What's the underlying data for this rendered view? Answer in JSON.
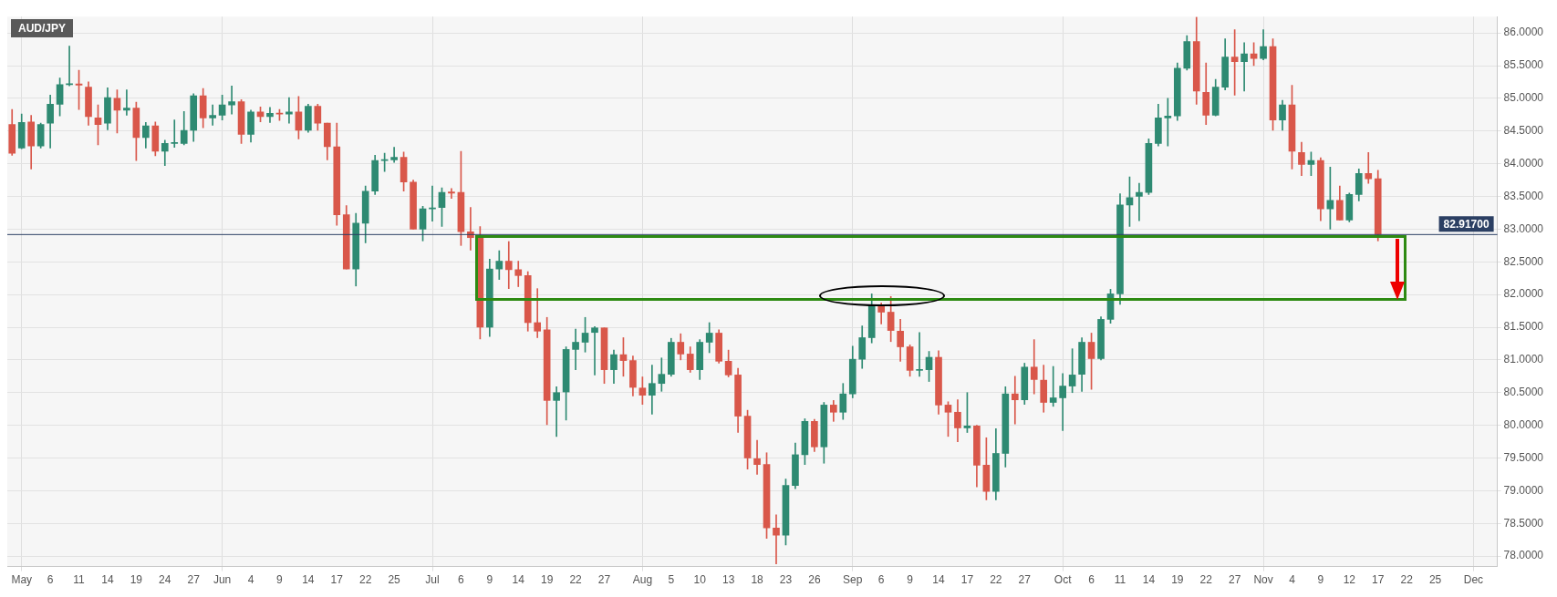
{
  "chart_data": {
    "type": "candlestick",
    "title": "AUD/JPY",
    "categories": [
      null,
      "May",
      null,
      null,
      "6",
      null,
      null,
      "11",
      null,
      null,
      "14",
      null,
      null,
      "19",
      null,
      null,
      "24",
      null,
      null,
      "27",
      null,
      null,
      "Jun",
      null,
      null,
      "4",
      null,
      null,
      "9",
      null,
      null,
      "14",
      null,
      null,
      "17",
      null,
      null,
      "22",
      null,
      null,
      "25",
      null,
      null,
      null,
      "Jul",
      null,
      null,
      "6",
      null,
      null,
      "9",
      null,
      null,
      "14",
      null,
      null,
      "19",
      null,
      null,
      "22",
      null,
      null,
      "27",
      null,
      null,
      null,
      "Aug",
      null,
      null,
      "5",
      null,
      null,
      "10",
      null,
      null,
      "13",
      null,
      null,
      "18",
      null,
      null,
      "23",
      null,
      null,
      "26",
      null,
      null,
      null,
      "Sep",
      null,
      null,
      "6",
      null,
      null,
      "9",
      null,
      null,
      "14",
      null,
      null,
      "17",
      null,
      null,
      "22",
      null,
      null,
      "27",
      null,
      null,
      null,
      "Oct",
      null,
      null,
      "6",
      null,
      null,
      "11",
      null,
      null,
      "14",
      null,
      null,
      "19",
      null,
      null,
      "22",
      null,
      null,
      "27",
      null,
      null,
      "Nov",
      null,
      null,
      "4",
      null,
      null,
      "9",
      null,
      null,
      "12",
      null,
      null,
      "17",
      null,
      null,
      "22",
      null,
      null,
      "25",
      null,
      null,
      null,
      "Dec",
      null,
      null
    ],
    "ohlc": [
      [
        84.6,
        84.83,
        84.13,
        84.16
      ],
      [
        84.24,
        84.76,
        84.23,
        84.63
      ],
      [
        84.64,
        84.74,
        83.92,
        84.27
      ],
      [
        84.27,
        84.62,
        84.24,
        84.6
      ],
      [
        84.62,
        85.05,
        84.24,
        84.91
      ],
      [
        84.91,
        85.31,
        84.73,
        85.21
      ],
      [
        85.21,
        85.8,
        85.19,
        85.22
      ],
      [
        85.22,
        85.43,
        84.83,
        85.2
      ],
      [
        85.17,
        85.25,
        84.59,
        84.72
      ],
      [
        84.7,
        84.9,
        84.29,
        84.6
      ],
      [
        84.62,
        85.16,
        84.52,
        85.01
      ],
      [
        85.0,
        85.13,
        84.47,
        84.82
      ],
      [
        84.82,
        85.13,
        84.74,
        84.85
      ],
      [
        84.85,
        84.94,
        84.05,
        84.4
      ],
      [
        84.4,
        84.63,
        84.24,
        84.58
      ],
      [
        84.58,
        84.64,
        84.12,
        84.19
      ],
      [
        84.19,
        84.36,
        83.97,
        84.31
      ],
      [
        84.31,
        84.67,
        84.25,
        84.32
      ],
      [
        84.31,
        84.8,
        84.29,
        84.51
      ],
      [
        84.51,
        85.07,
        84.34,
        85.04
      ],
      [
        85.04,
        85.15,
        84.55,
        84.7
      ],
      [
        84.7,
        84.9,
        84.59,
        84.74
      ],
      [
        84.74,
        85.05,
        84.67,
        84.9
      ],
      [
        84.9,
        85.19,
        84.76,
        84.95
      ],
      [
        84.95,
        84.98,
        84.31,
        84.45
      ],
      [
        84.45,
        84.82,
        84.33,
        84.79
      ],
      [
        84.79,
        84.87,
        84.64,
        84.72
      ],
      [
        84.72,
        84.86,
        84.63,
        84.77
      ],
      [
        84.77,
        84.83,
        84.66,
        84.76
      ],
      [
        84.76,
        85.01,
        84.62,
        84.79
      ],
      [
        84.79,
        85.03,
        84.38,
        84.51
      ],
      [
        84.51,
        84.91,
        84.48,
        84.88
      ],
      [
        84.88,
        84.91,
        84.51,
        84.62
      ],
      [
        84.62,
        84.62,
        84.06,
        84.26
      ],
      [
        84.26,
        84.62,
        83.06,
        83.22
      ],
      [
        83.22,
        83.36,
        82.39,
        82.39
      ],
      [
        82.39,
        83.24,
        82.13,
        83.09
      ],
      [
        83.09,
        83.66,
        82.79,
        83.58
      ],
      [
        83.58,
        84.13,
        83.53,
        84.05
      ],
      [
        84.05,
        84.16,
        83.88,
        84.06
      ],
      [
        84.06,
        84.25,
        84.02,
        84.1
      ],
      [
        84.1,
        84.18,
        83.58,
        83.72
      ],
      [
        83.72,
        83.75,
        83.0,
        83.0
      ],
      [
        83.0,
        83.35,
        82.82,
        83.31
      ],
      [
        83.31,
        83.66,
        83.12,
        83.32
      ],
      [
        83.33,
        83.63,
        83.04,
        83.56
      ],
      [
        83.57,
        83.62,
        83.47,
        83.55
      ],
      [
        83.56,
        84.19,
        82.75,
        82.96
      ],
      [
        82.96,
        83.33,
        82.68,
        82.87
      ],
      [
        82.87,
        83.04,
        81.32,
        81.5
      ],
      [
        81.5,
        82.54,
        81.36,
        82.39
      ],
      [
        82.39,
        82.67,
        82.23,
        82.51
      ],
      [
        82.51,
        82.81,
        82.09,
        82.38
      ],
      [
        82.38,
        82.51,
        82.12,
        82.29
      ],
      [
        82.29,
        82.35,
        81.44,
        81.57
      ],
      [
        81.57,
        82.09,
        81.34,
        81.44
      ],
      [
        81.46,
        81.65,
        80.01,
        80.38
      ],
      [
        80.38,
        80.59,
        79.83,
        80.5
      ],
      [
        80.51,
        81.2,
        80.08,
        81.16
      ],
      [
        81.16,
        81.47,
        80.85,
        81.27
      ],
      [
        81.27,
        81.65,
        81.12,
        81.41
      ],
      [
        81.42,
        81.51,
        80.77,
        81.49
      ],
      [
        81.49,
        81.49,
        80.64,
        80.85
      ],
      [
        80.85,
        81.15,
        80.64,
        81.08
      ],
      [
        81.08,
        81.34,
        80.75,
        80.99
      ],
      [
        80.99,
        81.06,
        80.45,
        80.58
      ],
      [
        80.57,
        80.74,
        80.32,
        80.46
      ],
      [
        80.46,
        80.92,
        80.17,
        80.64
      ],
      [
        80.64,
        81.03,
        80.52,
        80.78
      ],
      [
        80.78,
        81.33,
        80.75,
        81.27
      ],
      [
        81.27,
        81.4,
        81.0,
        81.09
      ],
      [
        81.09,
        81.2,
        80.81,
        80.85
      ],
      [
        80.85,
        81.31,
        80.7,
        81.27
      ],
      [
        81.27,
        81.57,
        81.11,
        81.41
      ],
      [
        81.41,
        81.46,
        80.95,
        80.98
      ],
      [
        80.98,
        81.15,
        80.74,
        80.77
      ],
      [
        80.77,
        80.87,
        79.89,
        80.14
      ],
      [
        80.14,
        80.23,
        79.33,
        79.5
      ],
      [
        79.49,
        79.77,
        79.25,
        79.4
      ],
      [
        79.4,
        79.58,
        78.27,
        78.43
      ],
      [
        78.43,
        78.63,
        77.88,
        78.32
      ],
      [
        78.32,
        79.18,
        78.17,
        79.08
      ],
      [
        79.08,
        79.73,
        79.03,
        79.55
      ],
      [
        79.55,
        80.1,
        79.4,
        80.06
      ],
      [
        80.06,
        80.09,
        79.6,
        79.67
      ],
      [
        79.67,
        80.35,
        79.42,
        80.31
      ],
      [
        80.31,
        80.38,
        80.06,
        80.2
      ],
      [
        80.2,
        80.64,
        80.09,
        80.48
      ],
      [
        80.48,
        81.21,
        80.42,
        81.01
      ],
      [
        81.01,
        81.52,
        80.87,
        81.34
      ],
      [
        81.34,
        82.01,
        81.26,
        81.84
      ],
      [
        81.84,
        81.87,
        81.55,
        81.73
      ],
      [
        81.73,
        81.97,
        81.28,
        81.45
      ],
      [
        81.44,
        81.62,
        80.98,
        81.2
      ],
      [
        81.2,
        81.23,
        80.75,
        80.84
      ],
      [
        80.84,
        81.42,
        80.75,
        80.85
      ],
      [
        80.85,
        81.13,
        80.67,
        81.04
      ],
      [
        81.04,
        81.14,
        80.17,
        80.31
      ],
      [
        80.31,
        80.36,
        79.83,
        80.2
      ],
      [
        80.2,
        80.39,
        79.75,
        79.96
      ],
      [
        79.96,
        80.5,
        79.89,
        79.99
      ],
      [
        79.99,
        80.0,
        79.06,
        79.39
      ],
      [
        79.39,
        79.81,
        78.86,
        78.99
      ],
      [
        78.99,
        79.95,
        78.86,
        79.57
      ],
      [
        79.57,
        80.59,
        79.36,
        80.48
      ],
      [
        80.48,
        80.75,
        80.02,
        80.39
      ],
      [
        80.39,
        80.95,
        80.32,
        80.89
      ],
      [
        80.89,
        81.31,
        80.48,
        80.7
      ],
      [
        80.69,
        80.92,
        80.2,
        80.35
      ],
      [
        80.35,
        80.9,
        80.29,
        80.42
      ],
      [
        80.42,
        80.79,
        79.92,
        80.6
      ],
      [
        80.6,
        81.17,
        80.5,
        80.77
      ],
      [
        80.78,
        81.34,
        80.52,
        81.27
      ],
      [
        81.27,
        81.41,
        80.55,
        81.02
      ],
      [
        81.02,
        81.66,
        81.0,
        81.62
      ],
      [
        81.62,
        82.08,
        81.56,
        82.01
      ],
      [
        82.01,
        83.54,
        81.85,
        83.37
      ],
      [
        83.37,
        83.8,
        83.04,
        83.48
      ],
      [
        83.5,
        83.7,
        83.13,
        83.56
      ],
      [
        83.56,
        84.38,
        83.53,
        84.31
      ],
      [
        84.31,
        84.91,
        84.27,
        84.7
      ],
      [
        84.7,
        85.0,
        84.27,
        84.73
      ],
      [
        84.73,
        85.54,
        84.66,
        85.46
      ],
      [
        85.46,
        85.96,
        85.43,
        85.87
      ],
      [
        85.87,
        86.24,
        84.91,
        85.11
      ],
      [
        85.09,
        85.54,
        84.6,
        84.74
      ],
      [
        84.74,
        85.29,
        84.73,
        85.17
      ],
      [
        85.17,
        85.91,
        85.13,
        85.63
      ],
      [
        85.63,
        86.05,
        85.05,
        85.56
      ],
      [
        85.56,
        85.85,
        85.11,
        85.68
      ],
      [
        85.68,
        85.85,
        85.5,
        85.61
      ],
      [
        85.61,
        86.05,
        85.59,
        85.79
      ],
      [
        85.79,
        85.91,
        84.51,
        84.67
      ],
      [
        84.67,
        84.97,
        84.51,
        84.9
      ],
      [
        84.9,
        85.2,
        83.92,
        84.19
      ],
      [
        84.17,
        84.33,
        83.82,
        83.99
      ],
      [
        83.99,
        84.18,
        83.82,
        84.05
      ],
      [
        84.05,
        84.09,
        83.13,
        83.31
      ],
      [
        83.31,
        83.95,
        83.0,
        83.44
      ],
      [
        83.44,
        83.66,
        83.14,
        83.14
      ],
      [
        83.14,
        83.55,
        83.11,
        83.53
      ],
      [
        83.53,
        83.92,
        83.43,
        83.85
      ],
      [
        83.85,
        84.17,
        83.7,
        83.77
      ],
      [
        83.77,
        83.9,
        82.82,
        82.92
      ],
      null,
      null,
      null,
      null,
      null,
      null,
      null,
      null,
      null,
      null,
      null,
      null
    ],
    "ylim": [
      77.84,
      86.25
    ],
    "yticks": [
      {
        "value": 78,
        "label": "78.0000"
      },
      {
        "value": 78.5,
        "label": "78.5000"
      },
      {
        "value": 79,
        "label": "79.0000"
      },
      {
        "value": 79.5,
        "label": "79.5000"
      },
      {
        "value": 80,
        "label": "80.0000"
      },
      {
        "value": 80.5,
        "label": "80.5000"
      },
      {
        "value": 81,
        "label": "81.0000"
      },
      {
        "value": 81.5,
        "label": "81.5000"
      },
      {
        "value": 82,
        "label": "82.0000"
      },
      {
        "value": 82.5,
        "label": "82.5000"
      },
      {
        "value": 83,
        "label": "83.0000"
      },
      {
        "value": 83.5,
        "label": "83.5000"
      },
      {
        "value": 84,
        "label": "84.0000"
      },
      {
        "value": 84.5,
        "label": "84.5000"
      },
      {
        "value": 85,
        "label": "85.0000"
      },
      {
        "value": 85.5,
        "label": "85.5000"
      },
      {
        "value": 86,
        "label": "86.0000"
      }
    ],
    "ref_lines": [
      {
        "axis": "y",
        "value": 82.917,
        "label": "82.91700",
        "color": "#2b3f63"
      }
    ],
    "grid": true,
    "legend": false
  }
}
